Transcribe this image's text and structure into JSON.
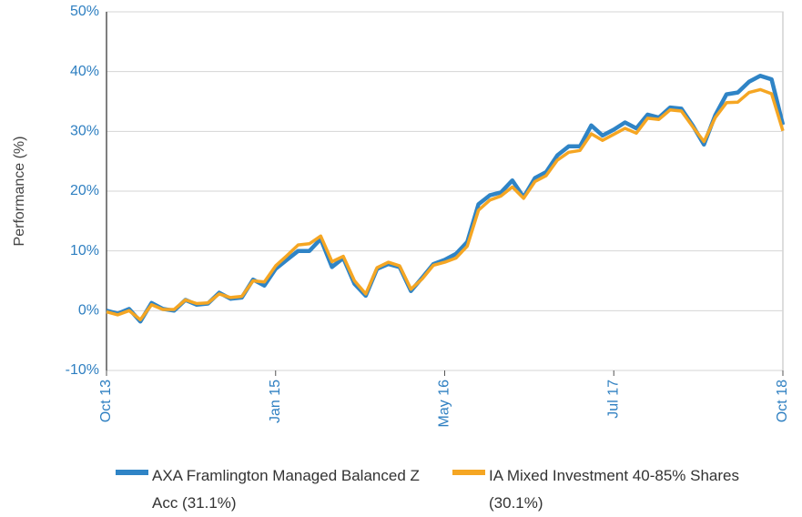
{
  "chart_data": {
    "type": "line",
    "y_label": "Performance (%)",
    "categories": [
      "Oct 13",
      null,
      null,
      null,
      null,
      null,
      null,
      null,
      null,
      null,
      null,
      null,
      null,
      null,
      null,
      "Jan 15",
      null,
      null,
      null,
      null,
      null,
      null,
      null,
      null,
      null,
      null,
      null,
      null,
      null,
      null,
      "May 16",
      null,
      null,
      null,
      null,
      null,
      null,
      null,
      null,
      null,
      null,
      null,
      null,
      null,
      null,
      "Jul 17",
      null,
      null,
      null,
      null,
      null,
      null,
      null,
      null,
      null,
      null,
      null,
      null,
      null,
      null,
      "Oct 18"
    ],
    "series": [
      {
        "name": "AXA Framlington Managed Balanced Z Acc (31.1%)",
        "color": "#2f84c6",
        "values": [
          0,
          -0.5,
          0.3,
          -1.8,
          1.3,
          0.3,
          0,
          1.8,
          1,
          1.2,
          3,
          2,
          2.2,
          5.2,
          4.2,
          7,
          8.5,
          10,
          10,
          12,
          7.3,
          8.8,
          4.5,
          2.5,
          7,
          7.8,
          7.3,
          3.3,
          5.5,
          7.8,
          8.5,
          9.5,
          11.5,
          17.8,
          19.3,
          19.8,
          21.8,
          19,
          22.2,
          23.2,
          26,
          27.5,
          27.5,
          31,
          29.3,
          30.3,
          31.5,
          30.5,
          32.8,
          32.3,
          34,
          33.8,
          31,
          27.8,
          32.7,
          36.2,
          36.5,
          38.3,
          39.3,
          38.7,
          31.1
        ]
      },
      {
        "name": "IA Mixed Investment 40-85% Shares (30.1%)",
        "color": "#f5a623",
        "values": [
          -0.2,
          -0.7,
          0,
          -1.5,
          1,
          0.2,
          0.2,
          1.8,
          1.2,
          1.3,
          2.8,
          2.2,
          2.4,
          5,
          4.8,
          7.5,
          9.2,
          11,
          11.2,
          12.5,
          8.2,
          9.1,
          5,
          2.8,
          7.2,
          8.1,
          7.5,
          3.6,
          5.3,
          7.6,
          8.1,
          8.8,
          10.8,
          16.8,
          18.5,
          19.2,
          20.7,
          18.8,
          21.6,
          22.6,
          25.2,
          26.5,
          26.8,
          29.6,
          28.5,
          29.5,
          30.5,
          29.7,
          32.2,
          32,
          33.6,
          33.4,
          30.8,
          28.3,
          32.3,
          34.8,
          34.9,
          36.5,
          37,
          36.3,
          30.1
        ]
      }
    ],
    "ylim": [
      -10,
      50
    ],
    "yticks": [
      {
        "value": -10,
        "label": "-10%"
      },
      {
        "value": 0,
        "label": "0%"
      },
      {
        "value": 10,
        "label": "10%"
      },
      {
        "value": 20,
        "label": "20%"
      },
      {
        "value": 30,
        "label": "30%"
      },
      {
        "value": 40,
        "label": "40%"
      },
      {
        "value": 50,
        "label": "50%"
      }
    ],
    "grid": true
  }
}
